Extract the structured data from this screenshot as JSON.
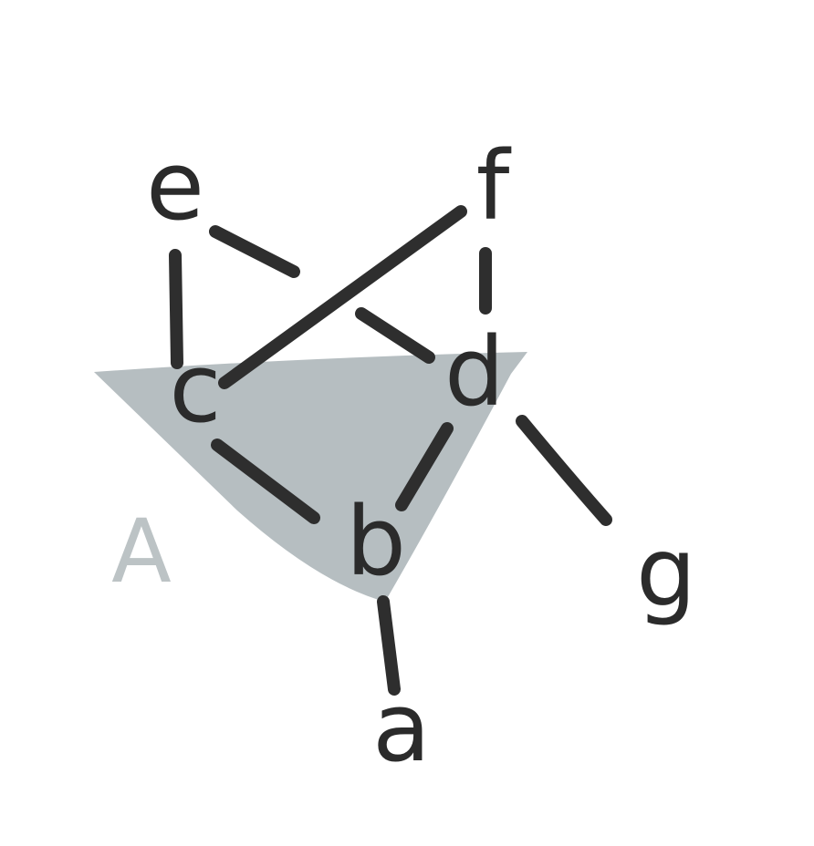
{
  "graph": {
    "nodes": [
      {
        "id": "a",
        "label": "a"
      },
      {
        "id": "b",
        "label": "b"
      },
      {
        "id": "c",
        "label": "c"
      },
      {
        "id": "d",
        "label": "d"
      },
      {
        "id": "e",
        "label": "e"
      },
      {
        "id": "f",
        "label": "f"
      },
      {
        "id": "g",
        "label": "g"
      }
    ],
    "edges": [
      {
        "from": "e",
        "to": "c"
      },
      {
        "from": "e",
        "to": "d"
      },
      {
        "from": "f",
        "to": "c"
      },
      {
        "from": "f",
        "to": "d"
      },
      {
        "from": "c",
        "to": "b"
      },
      {
        "from": "d",
        "to": "b"
      },
      {
        "from": "b",
        "to": "a"
      },
      {
        "from": "d",
        "to": "g"
      }
    ],
    "regions": [
      {
        "id": "A",
        "label": "A",
        "contains": [
          "b",
          "c",
          "d"
        ],
        "fill_color": "#b6bec1",
        "label_color": "#bcc3c5"
      }
    ],
    "edge_color": "#2e2e2e",
    "label_color": "#2b2b2b"
  }
}
